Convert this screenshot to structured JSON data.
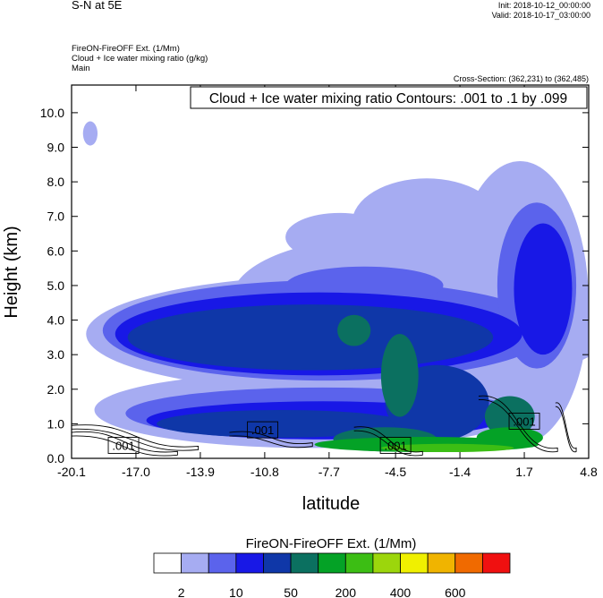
{
  "header": {
    "section_title": "S-N at 5E",
    "init": "Init: 2018-10-12_00:00:00",
    "valid": "Valid: 2018-10-17_03:00:00",
    "field1": "FireON-FireOFF Ext.   (1/Mm)",
    "field2": "Cloud + Ice water mixing ratio   (g/kg)",
    "field3": "Main",
    "cross_section": "Cross-Section: (362,231) to (362,485)"
  },
  "chart_data": {
    "type": "heatmap",
    "title": "Cloud + Ice water mixing ratio Contours: .001 to .1 by .099",
    "xlabel": "latitude",
    "ylabel": "Height (km)",
    "xlim": [
      -20.1,
      4.8
    ],
    "ylim": [
      0.0,
      10.8
    ],
    "x_ticks": [
      "-20.1",
      "-17.0",
      "-13.9",
      "-10.8",
      "-7.7",
      "-4.5",
      "-1.4",
      "1.7",
      "4.8"
    ],
    "x_tick_values": [
      -20.1,
      -17.0,
      -13.9,
      -10.8,
      -7.7,
      -4.5,
      -1.4,
      1.7,
      4.8
    ],
    "y_ticks": [
      "0.0",
      "1.0",
      "2.0",
      "3.0",
      "4.0",
      "5.0",
      "6.0",
      "7.0",
      "8.0",
      "9.0",
      "10.0"
    ],
    "y_tick_values": [
      0,
      1,
      2,
      3,
      4,
      5,
      6,
      7,
      8,
      9,
      10
    ],
    "contour_labels": [
      {
        "text": ".001",
        "x": -17.6,
        "y": 0.35
      },
      {
        "text": ".001",
        "x": -10.9,
        "y": 0.8
      },
      {
        "text": ".001",
        "x": -4.5,
        "y": 0.35
      },
      {
        "text": ".001",
        "x": 1.7,
        "y": 1.05
      }
    ],
    "colorbar": {
      "title": "FireON-FireOFF Ext.  (1/Mm)",
      "colors": [
        "#ffffff",
        "#a6acf2",
        "#5b63ec",
        "#1818e6",
        "#0f37a8",
        "#0b7060",
        "#04a226",
        "#3cbe14",
        "#9cd60c",
        "#f0f000",
        "#f0b400",
        "#f06a00",
        "#f01010"
      ],
      "labels": [
        "2",
        "10",
        "50",
        "200",
        "400",
        "600"
      ]
    },
    "regions": [
      {
        "level": 1,
        "shape": "ellipse",
        "cx": -6.8,
        "cy": 3.6,
        "rx": 12.6,
        "ry": 1.7
      },
      {
        "level": 1,
        "shape": "ellipse",
        "cx": -5.2,
        "cy": 4.6,
        "rx": 7.2,
        "ry": 1.8
      },
      {
        "level": 1,
        "shape": "ellipse",
        "cx": 1.5,
        "cy": 4.5,
        "rx": 3.3,
        "ry": 4.1
      },
      {
        "level": 1,
        "shape": "ellipse",
        "cx": -3.0,
        "cy": 6.8,
        "rx": 3.6,
        "ry": 1.3
      },
      {
        "level": 1,
        "shape": "ellipse",
        "cx": -7.2,
        "cy": 6.4,
        "rx": 2.6,
        "ry": 0.7
      },
      {
        "level": 1,
        "shape": "ellipse",
        "cx": -19.2,
        "cy": 9.4,
        "rx": 0.35,
        "ry": 0.35
      },
      {
        "level": 1,
        "shape": "ellipse",
        "cx": -8.5,
        "cy": 1.4,
        "rx": 10.5,
        "ry": 1.1
      },
      {
        "level": 2,
        "shape": "ellipse",
        "cx": -7.8,
        "cy": 3.7,
        "rx": 10.8,
        "ry": 1.45
      },
      {
        "level": 2,
        "shape": "ellipse",
        "cx": 2.3,
        "cy": 5.0,
        "rx": 1.9,
        "ry": 2.4
      },
      {
        "level": 2,
        "shape": "ellipse",
        "cx": -6.0,
        "cy": 5.0,
        "rx": 3.8,
        "ry": 0.55
      },
      {
        "level": 2,
        "shape": "ellipse",
        "cx": -8.0,
        "cy": 1.3,
        "rx": 9.5,
        "ry": 0.75
      },
      {
        "level": 3,
        "shape": "ellipse",
        "cx": -8.2,
        "cy": 3.6,
        "rx": 9.8,
        "ry": 1.2
      },
      {
        "level": 3,
        "shape": "ellipse",
        "cx": 2.6,
        "cy": 4.9,
        "rx": 1.4,
        "ry": 1.9
      },
      {
        "level": 3,
        "shape": "ellipse",
        "cx": -8.0,
        "cy": 1.1,
        "rx": 8.5,
        "ry": 0.55
      },
      {
        "level": 4,
        "shape": "ellipse",
        "cx": -8.6,
        "cy": 3.5,
        "rx": 8.8,
        "ry": 0.95
      },
      {
        "level": 4,
        "shape": "ellipse",
        "cx": -10.0,
        "cy": 1.0,
        "rx": 6.0,
        "ry": 0.4
      },
      {
        "level": 4,
        "shape": "ellipse",
        "cx": -2.5,
        "cy": 1.6,
        "rx": 2.5,
        "ry": 1.1
      },
      {
        "level": 5,
        "shape": "ellipse",
        "cx": -6.5,
        "cy": 3.7,
        "rx": 0.8,
        "ry": 0.45
      },
      {
        "level": 5,
        "shape": "ellipse",
        "cx": -4.3,
        "cy": 2.4,
        "rx": 0.9,
        "ry": 1.2
      },
      {
        "level": 5,
        "shape": "ellipse",
        "cx": -5.0,
        "cy": 0.55,
        "rx": 2.5,
        "ry": 0.35
      },
      {
        "level": 5,
        "shape": "ellipse",
        "cx": 1.0,
        "cy": 1.2,
        "rx": 1.2,
        "ry": 0.6
      },
      {
        "level": 6,
        "shape": "ellipse",
        "cx": -3.0,
        "cy": 0.4,
        "rx": 5.4,
        "ry": 0.22
      },
      {
        "level": 6,
        "shape": "ellipse",
        "cx": 1.0,
        "cy": 0.6,
        "rx": 1.6,
        "ry": 0.3
      },
      {
        "level": 7,
        "shape": "ellipse",
        "cx": -2.0,
        "cy": 0.3,
        "rx": 3.2,
        "ry": 0.12
      }
    ]
  }
}
